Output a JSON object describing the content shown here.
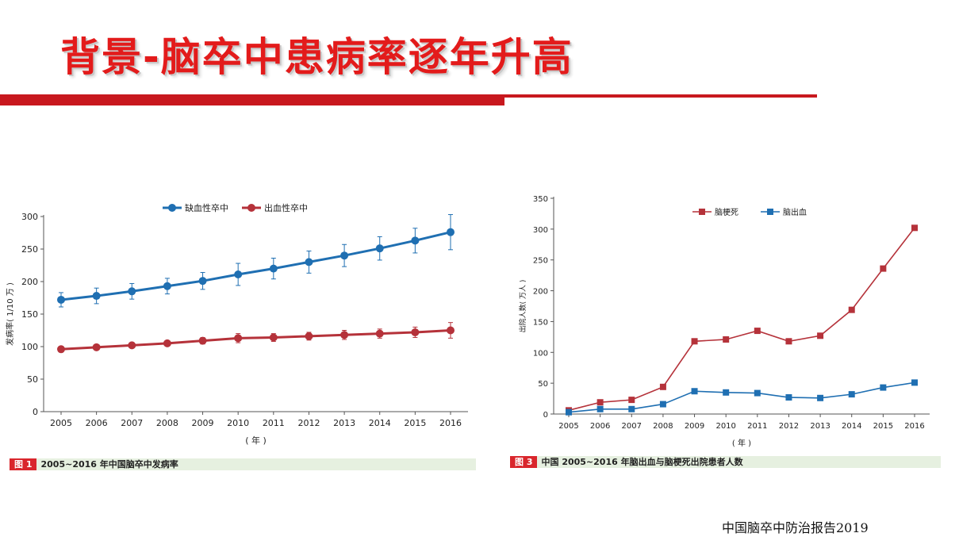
{
  "slide": {
    "title": "背景-脑卒中患病率逐年升高",
    "source": "中国脑卒中防治报告2019"
  },
  "colors": {
    "title_red": "#e31b1b",
    "bar_red": "#c8181e",
    "ischemic_blue": "#1f6fb2",
    "hemorrhagic_red": "#b5323a",
    "infarction_red": "#b5323a",
    "hemorrhage_blue": "#1f6fb2"
  },
  "figure1": {
    "tag": "图 1",
    "caption": "2005~2016 年中国脑卒中发病率"
  },
  "figure3": {
    "tag": "图 3",
    "caption": "中国 2005~2016 年脑出血与脑梗死出院患者人数"
  },
  "chart_data": [
    {
      "type": "line",
      "ylabel": "发病率( 1/10 万 )",
      "xlabel": "( 年 )",
      "ylim": [
        0,
        300
      ],
      "yticks": [
        0,
        50,
        100,
        150,
        200,
        250,
        300
      ],
      "x": [
        "2005",
        "2006",
        "2007",
        "2008",
        "2009",
        "2010",
        "2011",
        "2012",
        "2013",
        "2014",
        "2015",
        "2016"
      ],
      "legend": "top-center",
      "series": [
        {
          "name": "缺血性卒中",
          "color": "#1f6fb2",
          "values": [
            172,
            178,
            185,
            193,
            201,
            211,
            220,
            230,
            240,
            251,
            263,
            276
          ],
          "error": [
            11,
            12,
            12,
            12,
            13,
            17,
            16,
            17,
            17,
            18,
            19,
            27
          ]
        },
        {
          "name": "出血性卒中",
          "color": "#b5323a",
          "values": [
            96,
            99,
            102,
            105,
            109,
            113,
            114,
            116,
            118,
            120,
            122,
            125
          ],
          "error": [
            3,
            3,
            4,
            4,
            5,
            7,
            6,
            6,
            7,
            7,
            8,
            12
          ]
        }
      ]
    },
    {
      "type": "line",
      "ylabel": "出院人数( 万人 )",
      "xlabel": "( 年 )",
      "ylim": [
        0,
        350
      ],
      "yticks": [
        0,
        50,
        100,
        150,
        200,
        250,
        300,
        350
      ],
      "x": [
        "2005",
        "2006",
        "2007",
        "2008",
        "2009",
        "2010",
        "2011",
        "2012",
        "2013",
        "2014",
        "2015",
        "2016"
      ],
      "legend": "top-center",
      "series": [
        {
          "name": "脑梗死",
          "color": "#b5323a",
          "marker": "square",
          "values": [
            6,
            19,
            23,
            44,
            118,
            121,
            135,
            118,
            127,
            169,
            236,
            302
          ]
        },
        {
          "name": "脑出血",
          "color": "#1f6fb2",
          "marker": "square",
          "values": [
            3,
            8,
            8,
            16,
            37,
            35,
            34,
            27,
            26,
            32,
            43,
            51
          ]
        }
      ]
    }
  ]
}
